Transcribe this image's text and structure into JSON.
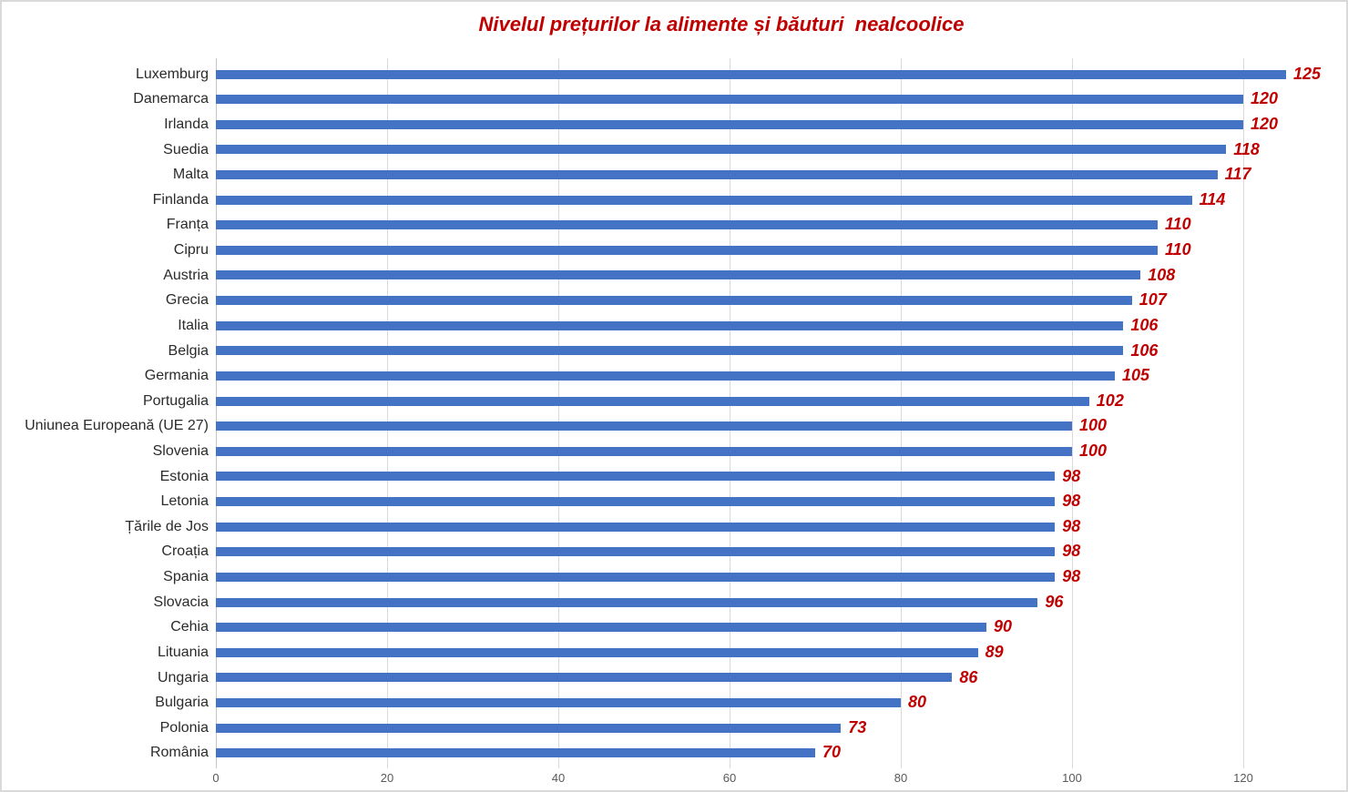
{
  "chart_data": {
    "type": "bar",
    "orientation": "horizontal",
    "title": "Nivelul prețurilor la alimente și băuturi  nealcoolice",
    "xlabel": "",
    "ylabel": "",
    "categories": [
      "Luxemburg",
      "Danemarca",
      "Irlanda",
      "Suedia",
      "Malta",
      "Finlanda",
      "Franța",
      "Cipru",
      "Austria",
      "Grecia",
      "Italia",
      "Belgia",
      "Germania",
      "Portugalia",
      "Uniunea Europeană (UE 27)",
      "Slovenia",
      "Estonia",
      "Letonia",
      "Țările de Jos",
      "Croația",
      "Spania",
      "Slovacia",
      "Cehia",
      "Lituania",
      "Ungaria",
      "Bulgaria",
      "Polonia",
      "România"
    ],
    "values": [
      125,
      120,
      120,
      118,
      117,
      114,
      110,
      110,
      108,
      107,
      106,
      106,
      105,
      102,
      100,
      100,
      98,
      98,
      98,
      98,
      98,
      96,
      90,
      89,
      86,
      80,
      73,
      70
    ],
    "xlim": [
      0,
      130
    ],
    "x_ticks": [
      0,
      20,
      40,
      60,
      80,
      100,
      120
    ],
    "grid": true,
    "legend": "none",
    "value_labels": "end-of-bar",
    "colors": {
      "bar": "#4472c4",
      "value_label": "#c00000",
      "title": "#c00000",
      "category_label": "#2b2b2b",
      "tick_label": "#595959",
      "gridline": "#d9d9d9",
      "border": "#d9d9d9"
    }
  }
}
